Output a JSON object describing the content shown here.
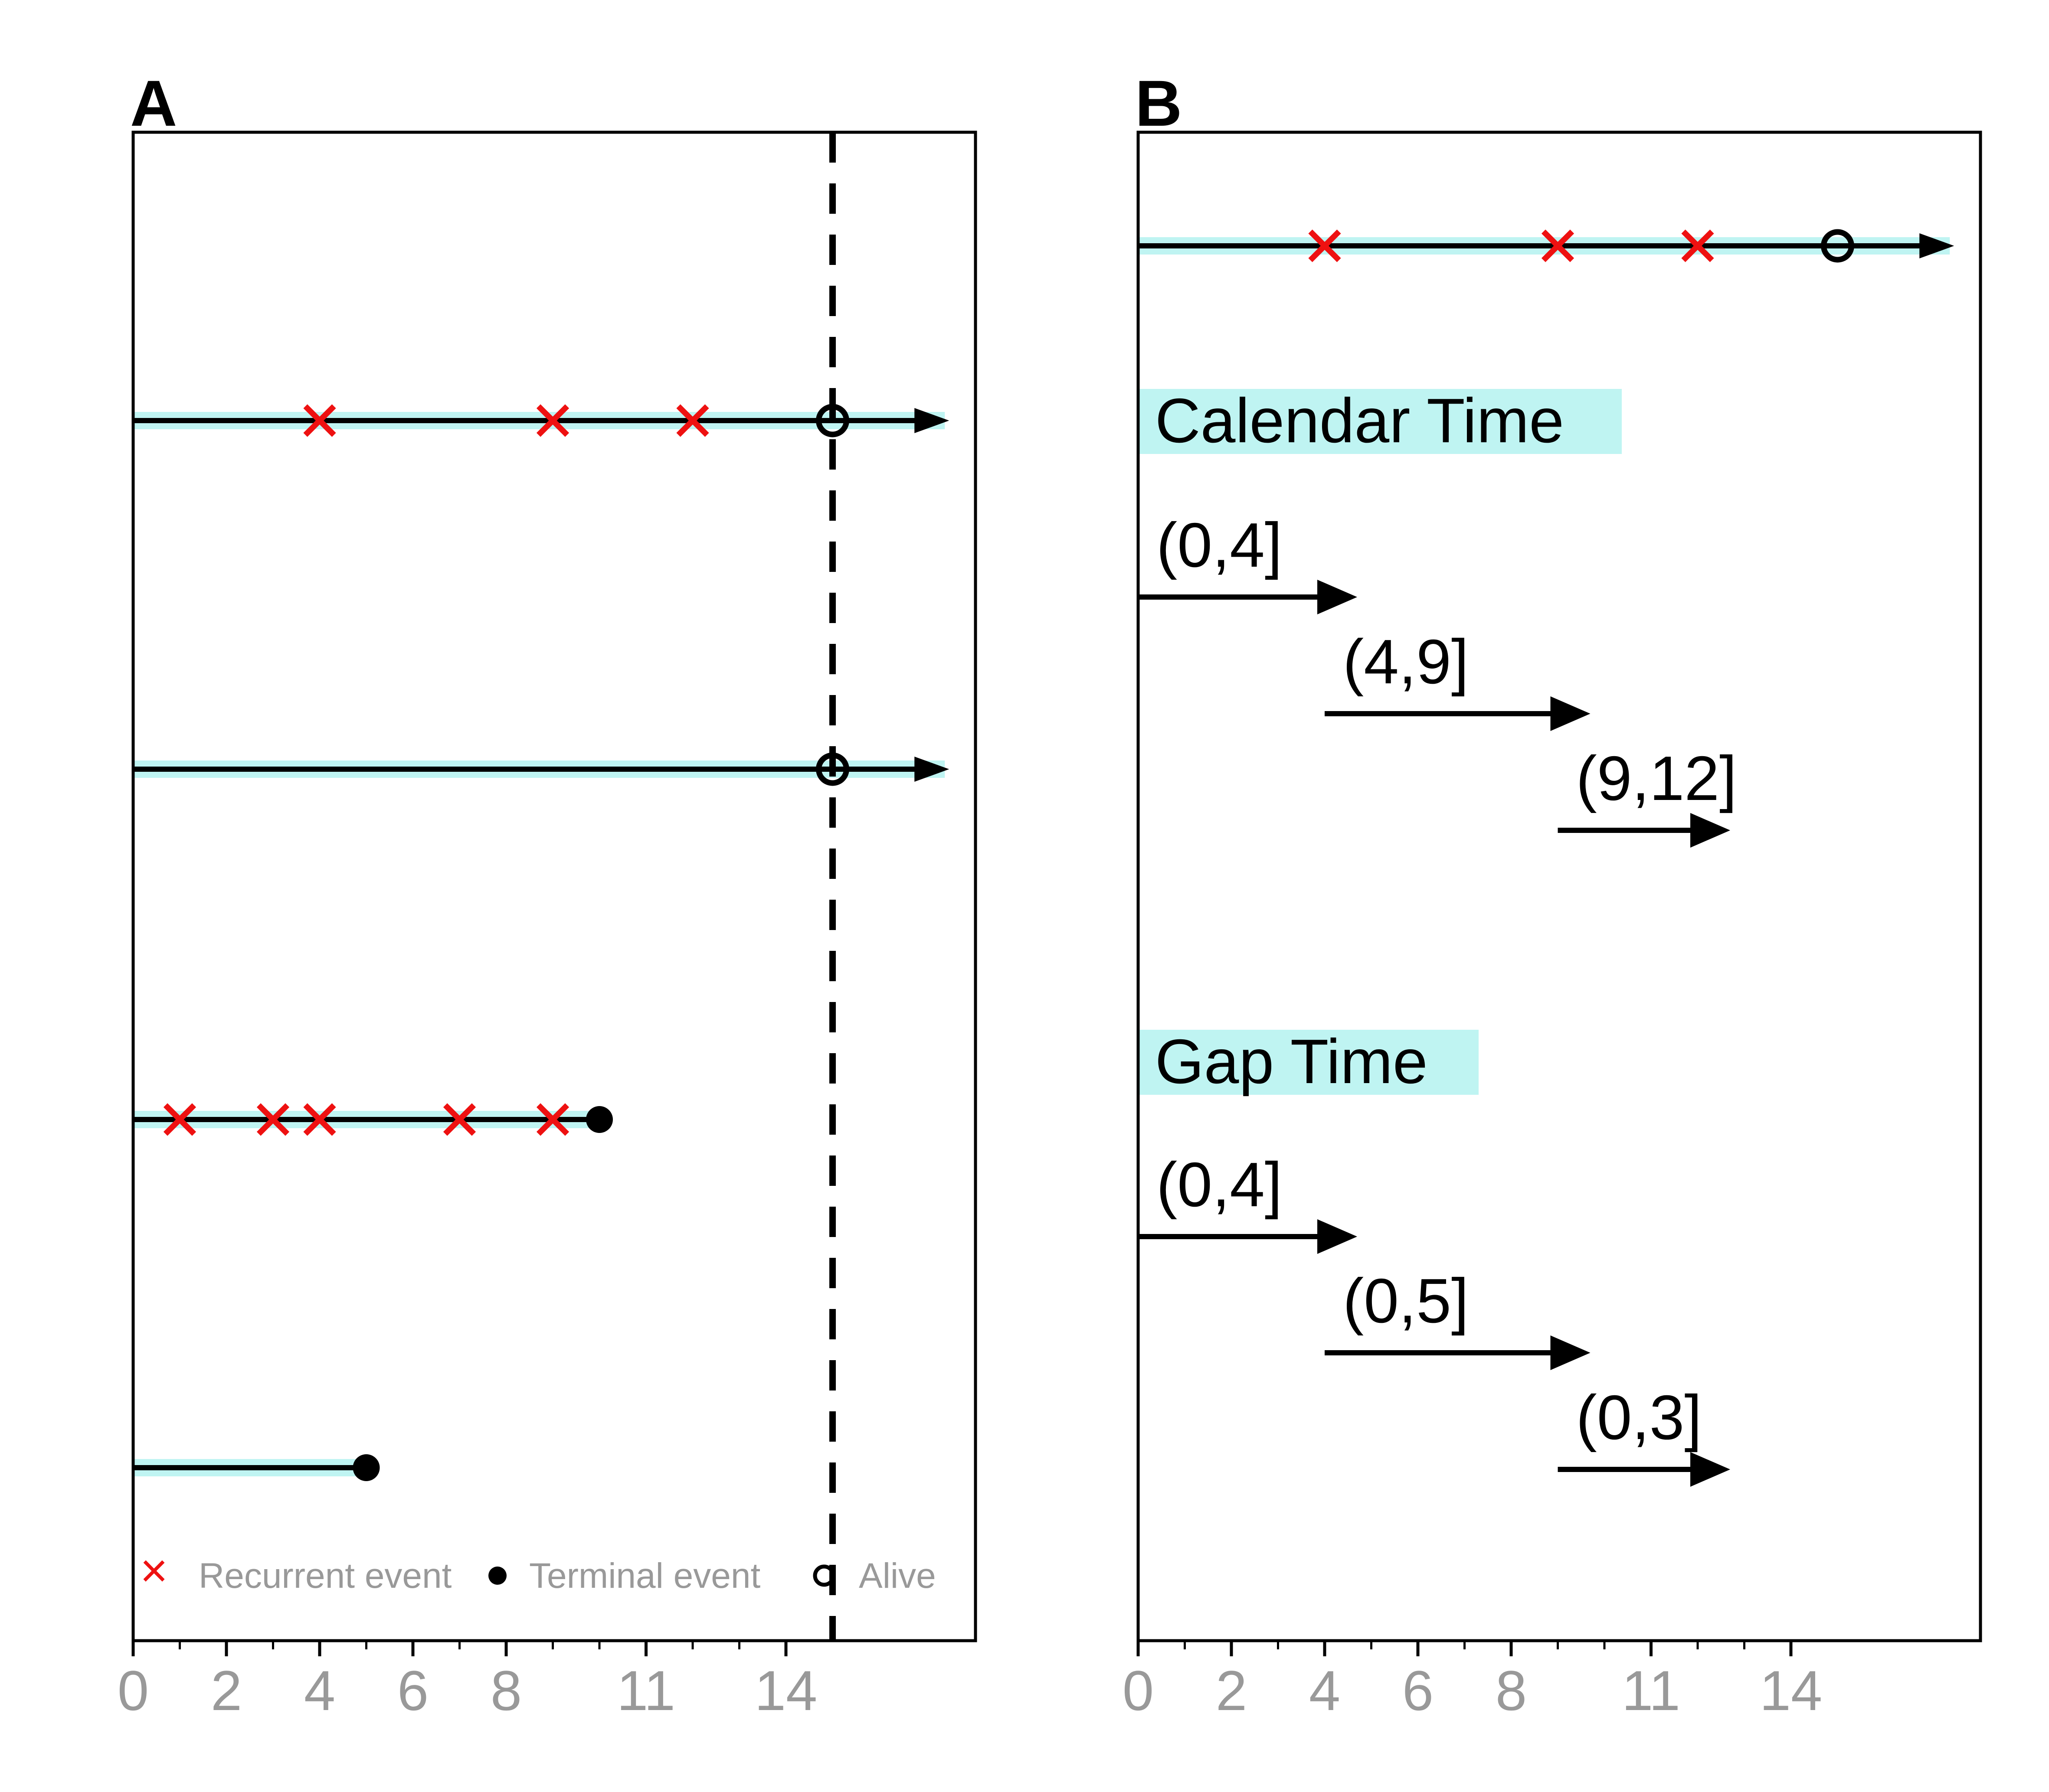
{
  "colors": {
    "band": "#bff4f2",
    "line": "#000000",
    "recurrent": "#ee1111",
    "tick_label": "#999999",
    "legend_text": "#999999"
  },
  "chart_data": [
    {
      "panel": "A",
      "type": "scatter",
      "xlim": [
        0,
        18
      ],
      "x_ticks": [
        0,
        2,
        4,
        6,
        8,
        11,
        14
      ],
      "x_minor_ticks": [
        1,
        3,
        5,
        7,
        9,
        10,
        12,
        13
      ],
      "cutoff_x": 15,
      "subjects": [
        {
          "end": 17.5,
          "recurrent": [
            4,
            9,
            12
          ],
          "end_marker": "alive",
          "marker_x": 15,
          "arrow": true
        },
        {
          "end": 17.5,
          "recurrent": [],
          "end_marker": "alive",
          "marker_x": 15,
          "arrow": true
        },
        {
          "end": 10,
          "recurrent": [
            1,
            3,
            4,
            7,
            9
          ],
          "end_marker": "terminal",
          "marker_x": 10,
          "arrow": false
        },
        {
          "end": 5,
          "recurrent": [],
          "end_marker": "terminal",
          "marker_x": 5,
          "arrow": false
        }
      ],
      "legend": [
        {
          "label": "Recurrent event",
          "marker": "x"
        },
        {
          "label": "Terminal event",
          "marker": "filled-circle"
        },
        {
          "label": "Alive",
          "marker": "open-circle"
        }
      ]
    },
    {
      "panel": "B",
      "type": "scatter",
      "xlim": [
        0,
        18
      ],
      "x_ticks": [
        0,
        2,
        4,
        6,
        8,
        11,
        14
      ],
      "x_minor_ticks": [
        1,
        3,
        5,
        7,
        9,
        10,
        12,
        13
      ],
      "subject": {
        "end": 17.5,
        "recurrent": [
          4,
          9,
          12
        ],
        "alive_x": 15
      },
      "sections": [
        {
          "title": "Calendar Time",
          "intervals": [
            {
              "label": "(0,4]",
              "start": 0,
              "end": 4
            },
            {
              "label": "(4,9]",
              "start": 4,
              "end": 9
            },
            {
              "label": "(9,12]",
              "start": 9,
              "end": 12
            }
          ]
        },
        {
          "title": "Gap Time",
          "intervals": [
            {
              "label": "(0,4]",
              "start": 0,
              "end": 4
            },
            {
              "label": "(0,5]",
              "start": 4,
              "end": 9
            },
            {
              "label": "(0,3]",
              "start": 9,
              "end": 12
            }
          ]
        }
      ]
    }
  ]
}
